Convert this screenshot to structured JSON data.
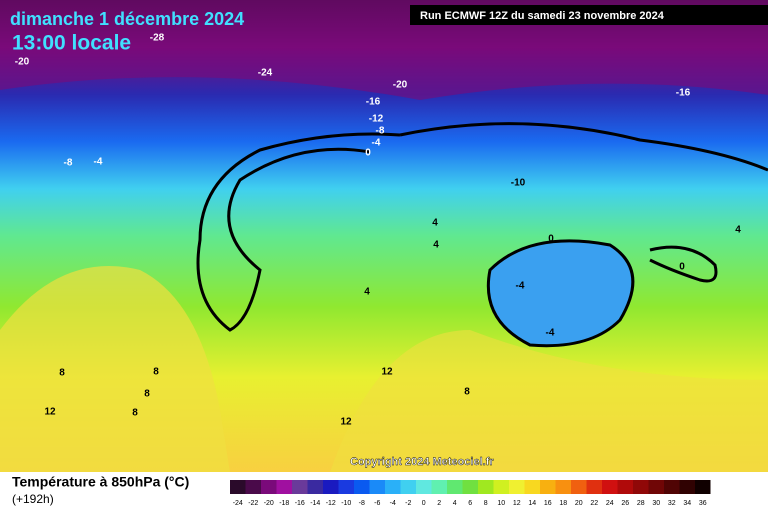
{
  "header": {
    "date": "dimanche 1 décembre 2024",
    "time": "13:00 locale",
    "run": "Run ECMWF 12Z du samedi 23 novembre 2024"
  },
  "copyright": "Copyright 2024 Meteociel.fr",
  "legend": {
    "title": "Température à 850hPa (°C)",
    "lead": "(+192h)",
    "scale": [
      {
        "value": -24,
        "color": "#2a0a2a"
      },
      {
        "value": -22,
        "color": "#4a0a4a"
      },
      {
        "value": -20,
        "color": "#7a0a7a"
      },
      {
        "value": -18,
        "color": "#a010a0"
      },
      {
        "value": -16,
        "color": "#6a3a9a"
      },
      {
        "value": -14,
        "color": "#3a2aa0"
      },
      {
        "value": -12,
        "color": "#1a1ac0"
      },
      {
        "value": -10,
        "color": "#1a3ae0"
      },
      {
        "value": -8,
        "color": "#0a5af0"
      },
      {
        "value": -6,
        "color": "#1a8af8"
      },
      {
        "value": -4,
        "color": "#2ab0f8"
      },
      {
        "value": -2,
        "color": "#40d0f0"
      },
      {
        "value": 0,
        "color": "#60e8e0"
      },
      {
        "value": 2,
        "color": "#60f0b0"
      },
      {
        "value": 4,
        "color": "#60e870"
      },
      {
        "value": 6,
        "color": "#70e040"
      },
      {
        "value": 8,
        "color": "#a0e820"
      },
      {
        "value": 10,
        "color": "#d0f020"
      },
      {
        "value": 12,
        "color": "#f0f030"
      },
      {
        "value": 14,
        "color": "#f8d820"
      },
      {
        "value": 16,
        "color": "#f8b010"
      },
      {
        "value": 18,
        "color": "#f89010"
      },
      {
        "value": 20,
        "color": "#f06010"
      },
      {
        "value": 22,
        "color": "#e03010"
      },
      {
        "value": 24,
        "color": "#d01010"
      },
      {
        "value": 26,
        "color": "#b00a0a"
      },
      {
        "value": 28,
        "color": "#900808"
      },
      {
        "value": 30,
        "color": "#700606"
      },
      {
        "value": 32,
        "color": "#500404"
      },
      {
        "value": 34,
        "color": "#300202"
      },
      {
        "value": 36,
        "color": "#100000"
      }
    ]
  },
  "contour_labels": [
    -28,
    -20,
    -24,
    -20,
    -16,
    -16,
    -12,
    -8,
    -4,
    0,
    -8,
    -4,
    -10,
    4,
    4,
    0,
    4,
    0,
    -4,
    4,
    -4,
    8,
    8,
    8,
    8,
    12,
    12,
    12,
    8
  ]
}
